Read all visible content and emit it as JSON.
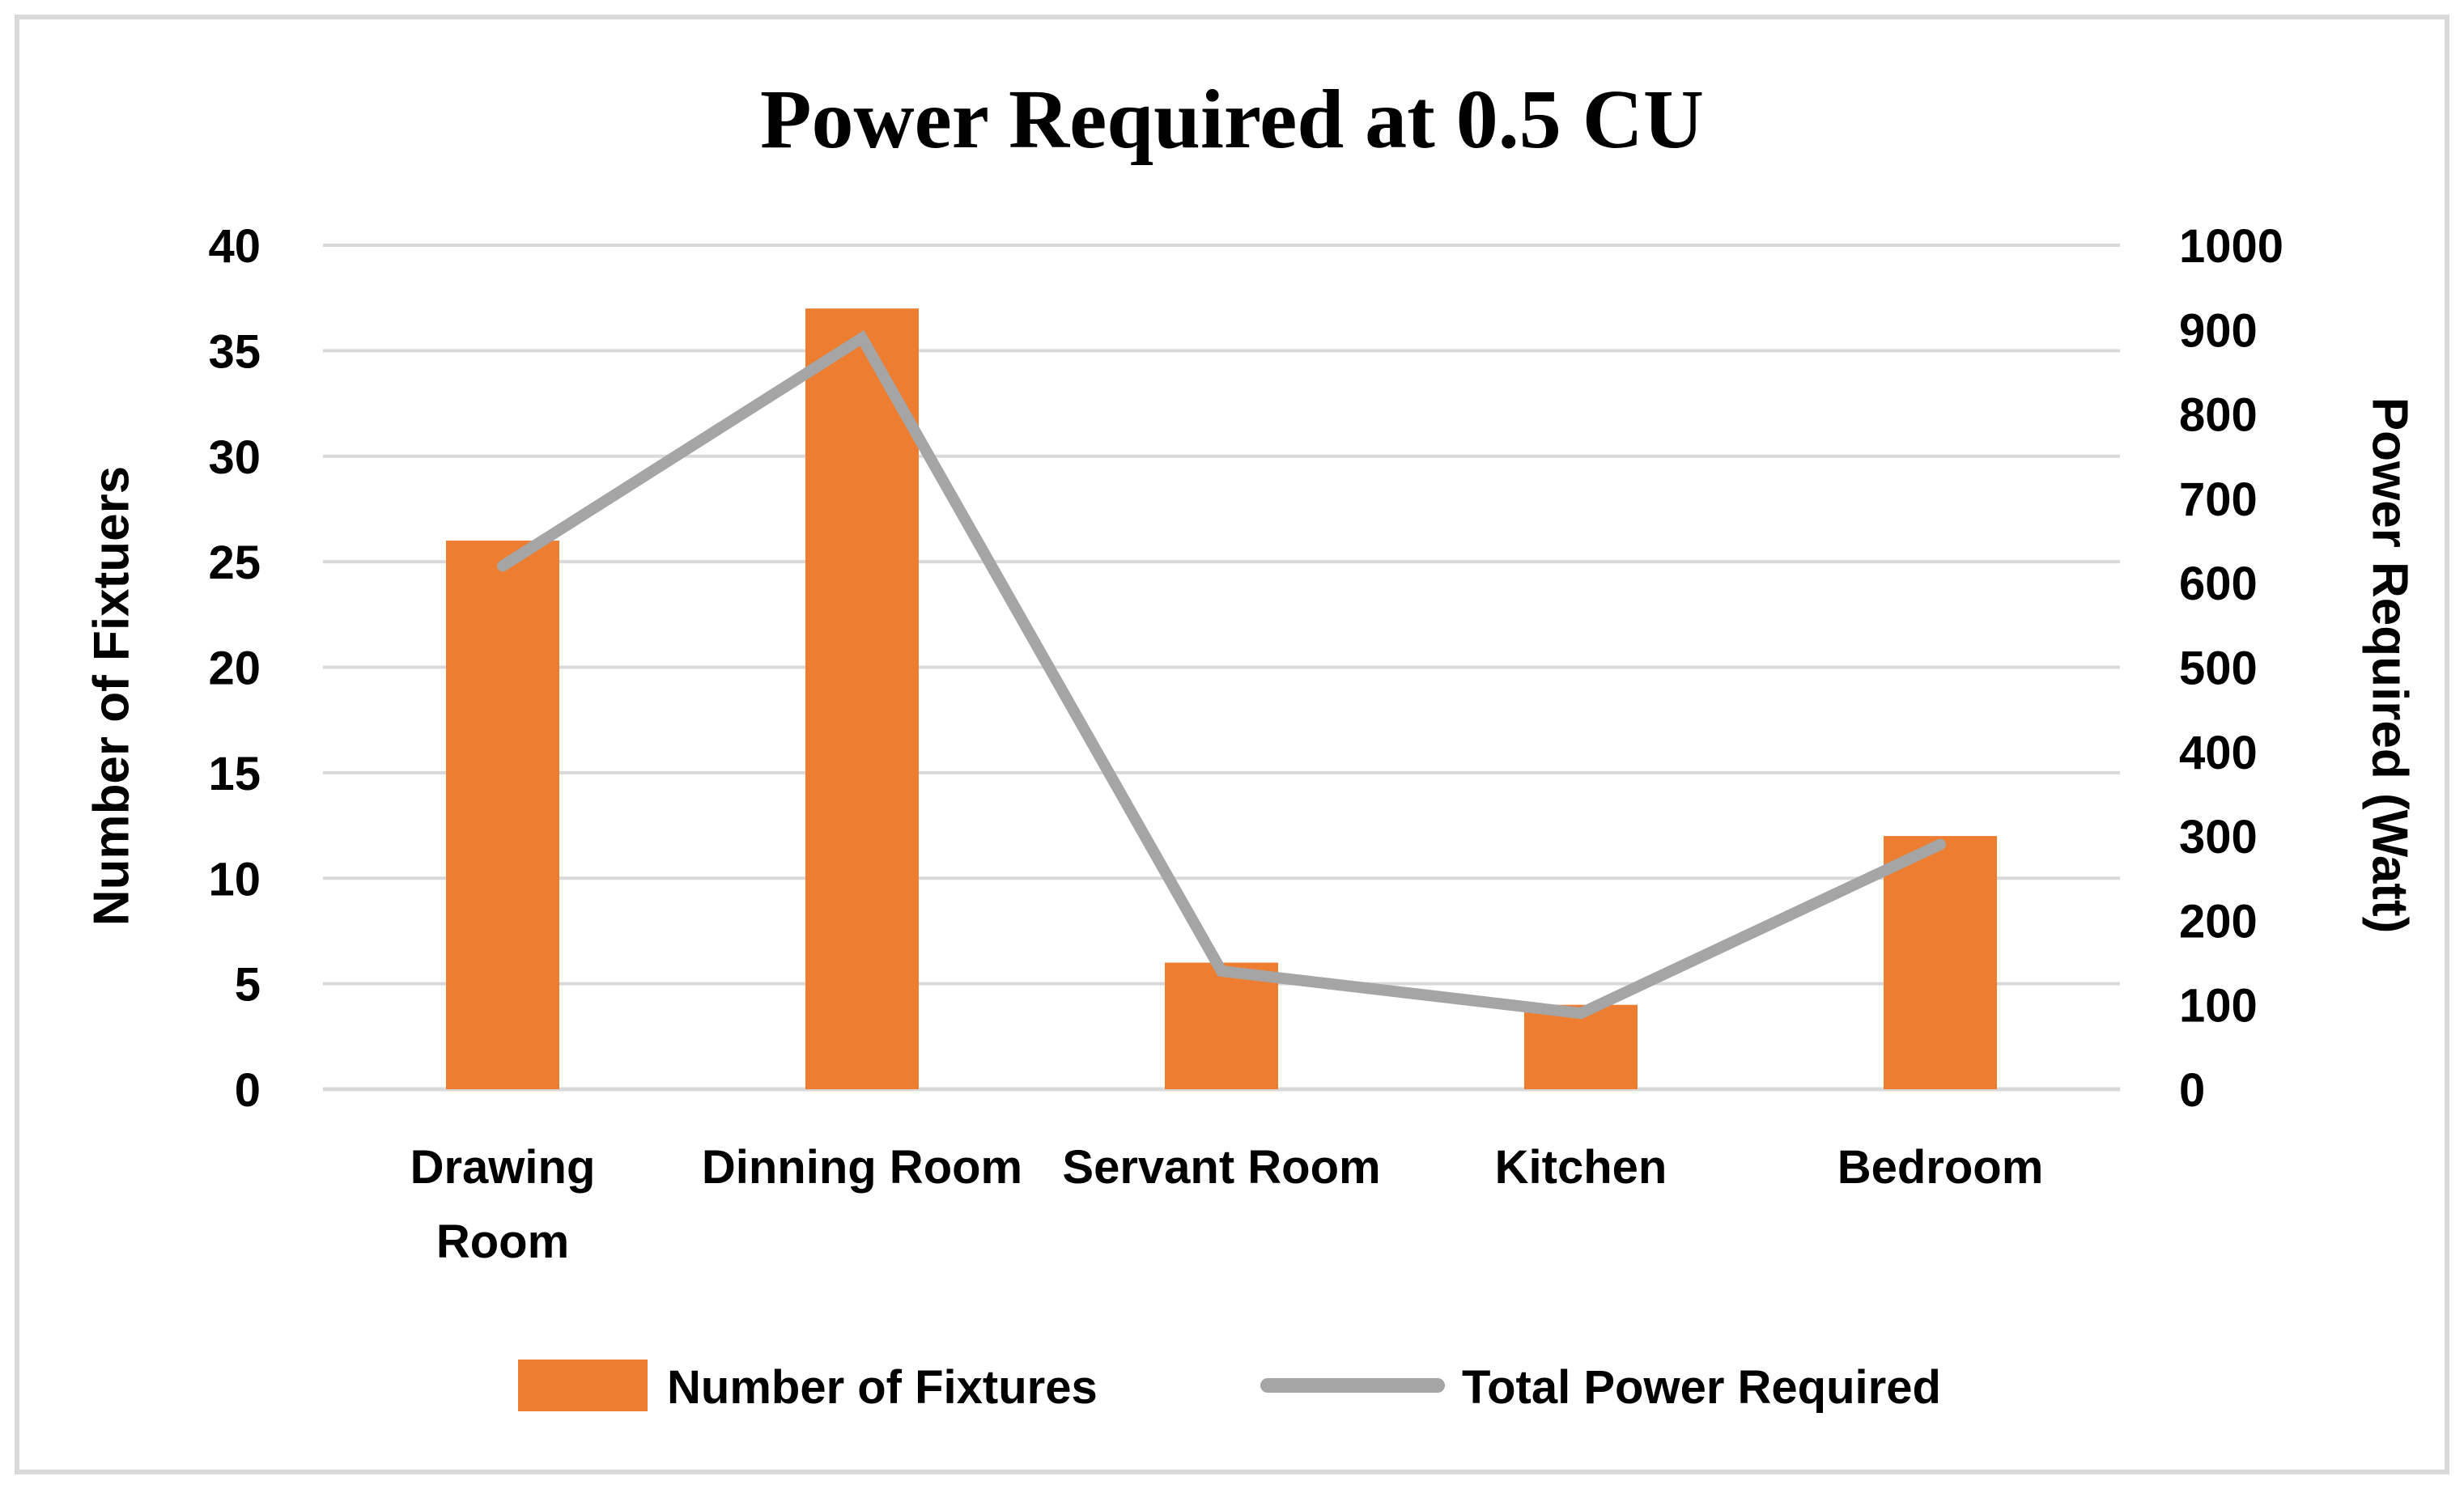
{
  "title": "Power Required at 0.5 CU",
  "chart_data": {
    "type": "bar",
    "subtype": "combo-bar-line-dual-axis",
    "title": "Power Required at 0.5 CU",
    "categories": [
      "Drawing Room",
      "Dinning Room",
      "Servant Room",
      "Kitchen",
      "Bedroom"
    ],
    "categories_display": [
      [
        "Drawing",
        "Room"
      ],
      [
        "Dinning Room"
      ],
      [
        "Servant Room"
      ],
      [
        "Kitchen"
      ],
      [
        "Bedroom"
      ]
    ],
    "series": [
      {
        "name": "Number of Fixtures",
        "type": "bar",
        "axis": "left",
        "color": "#ED7D31",
        "values": [
          26,
          37,
          6,
          4,
          12
        ]
      },
      {
        "name": "Total Power Required",
        "type": "line",
        "axis": "right",
        "color": "#A5A5A5",
        "values": [
          620,
          890,
          140,
          90,
          290
        ]
      }
    ],
    "left_axis": {
      "label": "Number of Fixtuers",
      "min": 0,
      "max": 40,
      "step": 5,
      "ticks": [
        "0",
        "5",
        "10",
        "15",
        "20",
        "25",
        "30",
        "35",
        "40"
      ]
    },
    "right_axis": {
      "label": "Power Required (Watt)",
      "min": 0,
      "max": 1000,
      "step": 100,
      "ticks": [
        "0",
        "100",
        "200",
        "300",
        "400",
        "500",
        "600",
        "700",
        "800",
        "900",
        "1000"
      ]
    },
    "grid": true,
    "gridline_color": "#D9D9D9",
    "legend_position": "bottom"
  }
}
